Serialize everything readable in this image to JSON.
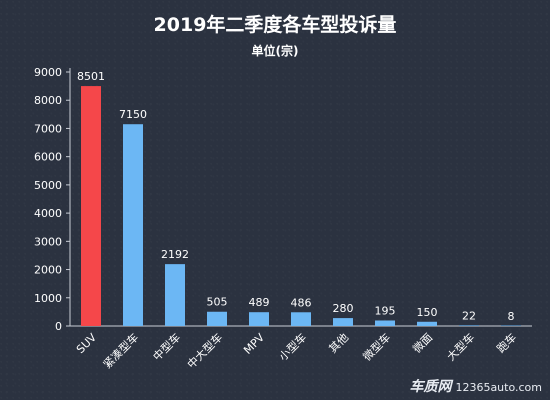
{
  "chart_data": {
    "type": "bar",
    "title": "2019年二季度各车型投诉量",
    "subtitle": "单位(宗)",
    "categories": [
      "SUV",
      "紧凑型车",
      "中型车",
      "中大型车",
      "MPV",
      "小型车",
      "其他",
      "微型车",
      "微面",
      "大型车",
      "跑车"
    ],
    "values": [
      8501,
      7150,
      2192,
      505,
      489,
      486,
      280,
      195,
      150,
      22,
      8
    ],
    "bar_colors": [
      "#f5474a",
      "#6cb7f4",
      "#6cb7f4",
      "#6cb7f4",
      "#6cb7f4",
      "#6cb7f4",
      "#6cb7f4",
      "#6cb7f4",
      "#6cb7f4",
      "#6cb7f4",
      "#6cb7f4"
    ],
    "yticks": [
      0,
      1000,
      2000,
      3000,
      4000,
      5000,
      6000,
      7000,
      8000,
      9000
    ],
    "ylim": [
      0,
      9000
    ],
    "grid": false,
    "legend": "none"
  },
  "watermark": {
    "logo": "车质网",
    "url": "12365auto.com"
  }
}
